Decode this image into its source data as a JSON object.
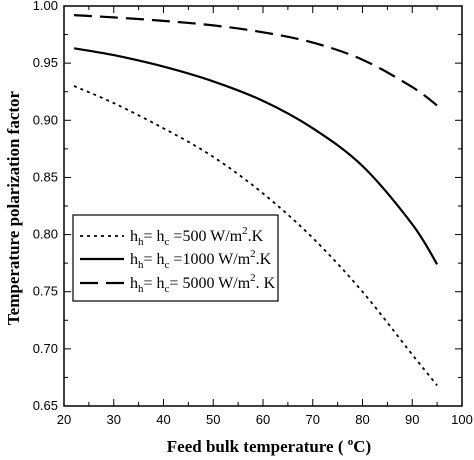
{
  "chart_data": {
    "type": "line",
    "xlabel": "Feed bulk temperature (",
    "xlabel_unit_sup": "o",
    "xlabel_unit": "C)",
    "ylabel": "Temperature polarization  factor",
    "xlim": [
      20,
      100
    ],
    "ylim": [
      0.65,
      1.0
    ],
    "x_ticks": [
      "20",
      "30",
      "40",
      "50",
      "60",
      "70",
      "80",
      "90",
      "100"
    ],
    "y_ticks": [
      "0.65",
      "0.70",
      "0.75",
      "0.80",
      "0.85",
      "0.90",
      "0.95",
      "1.00"
    ],
    "grid": false,
    "legend_position": "middle-left",
    "series": [
      {
        "name": "h_h = h_c = 500 W/m^2.K",
        "legend": {
          "a": "h",
          "a_sub": "h",
          "eq1": "= h",
          "b_sub": "c",
          "rest": " =500 W/m",
          "sup": "2",
          "tail": ".K"
        },
        "style": "dotted",
        "x": [
          22,
          30,
          40,
          50,
          60,
          70,
          80,
          90,
          95
        ],
        "y": [
          0.93,
          0.915,
          0.893,
          0.868,
          0.836,
          0.797,
          0.75,
          0.695,
          0.668
        ]
      },
      {
        "name": "h_h = h_c = 1000 W/m^2.K",
        "legend": {
          "a": "h",
          "a_sub": "h",
          "eq1": "= h",
          "b_sub": "c",
          "rest": " =1000 W/m",
          "sup": "2",
          "tail": ".K"
        },
        "style": "solid",
        "x": [
          22,
          30,
          40,
          50,
          60,
          70,
          80,
          90,
          95
        ],
        "y": [
          0.963,
          0.957,
          0.947,
          0.934,
          0.917,
          0.893,
          0.86,
          0.809,
          0.774
        ]
      },
      {
        "name": "h_h = h_c = 5000 W/m^2. K",
        "legend": {
          "a": "h",
          "a_sub": "h",
          "eq1": "= h",
          "b_sub": "c",
          "rest": "= 5000 W/m",
          "sup": "2",
          "tail": ". K"
        },
        "style": "dashed",
        "x": [
          22,
          30,
          40,
          50,
          60,
          70,
          80,
          90,
          95
        ],
        "y": [
          0.992,
          0.99,
          0.987,
          0.983,
          0.977,
          0.968,
          0.953,
          0.929,
          0.913
        ]
      }
    ]
  }
}
